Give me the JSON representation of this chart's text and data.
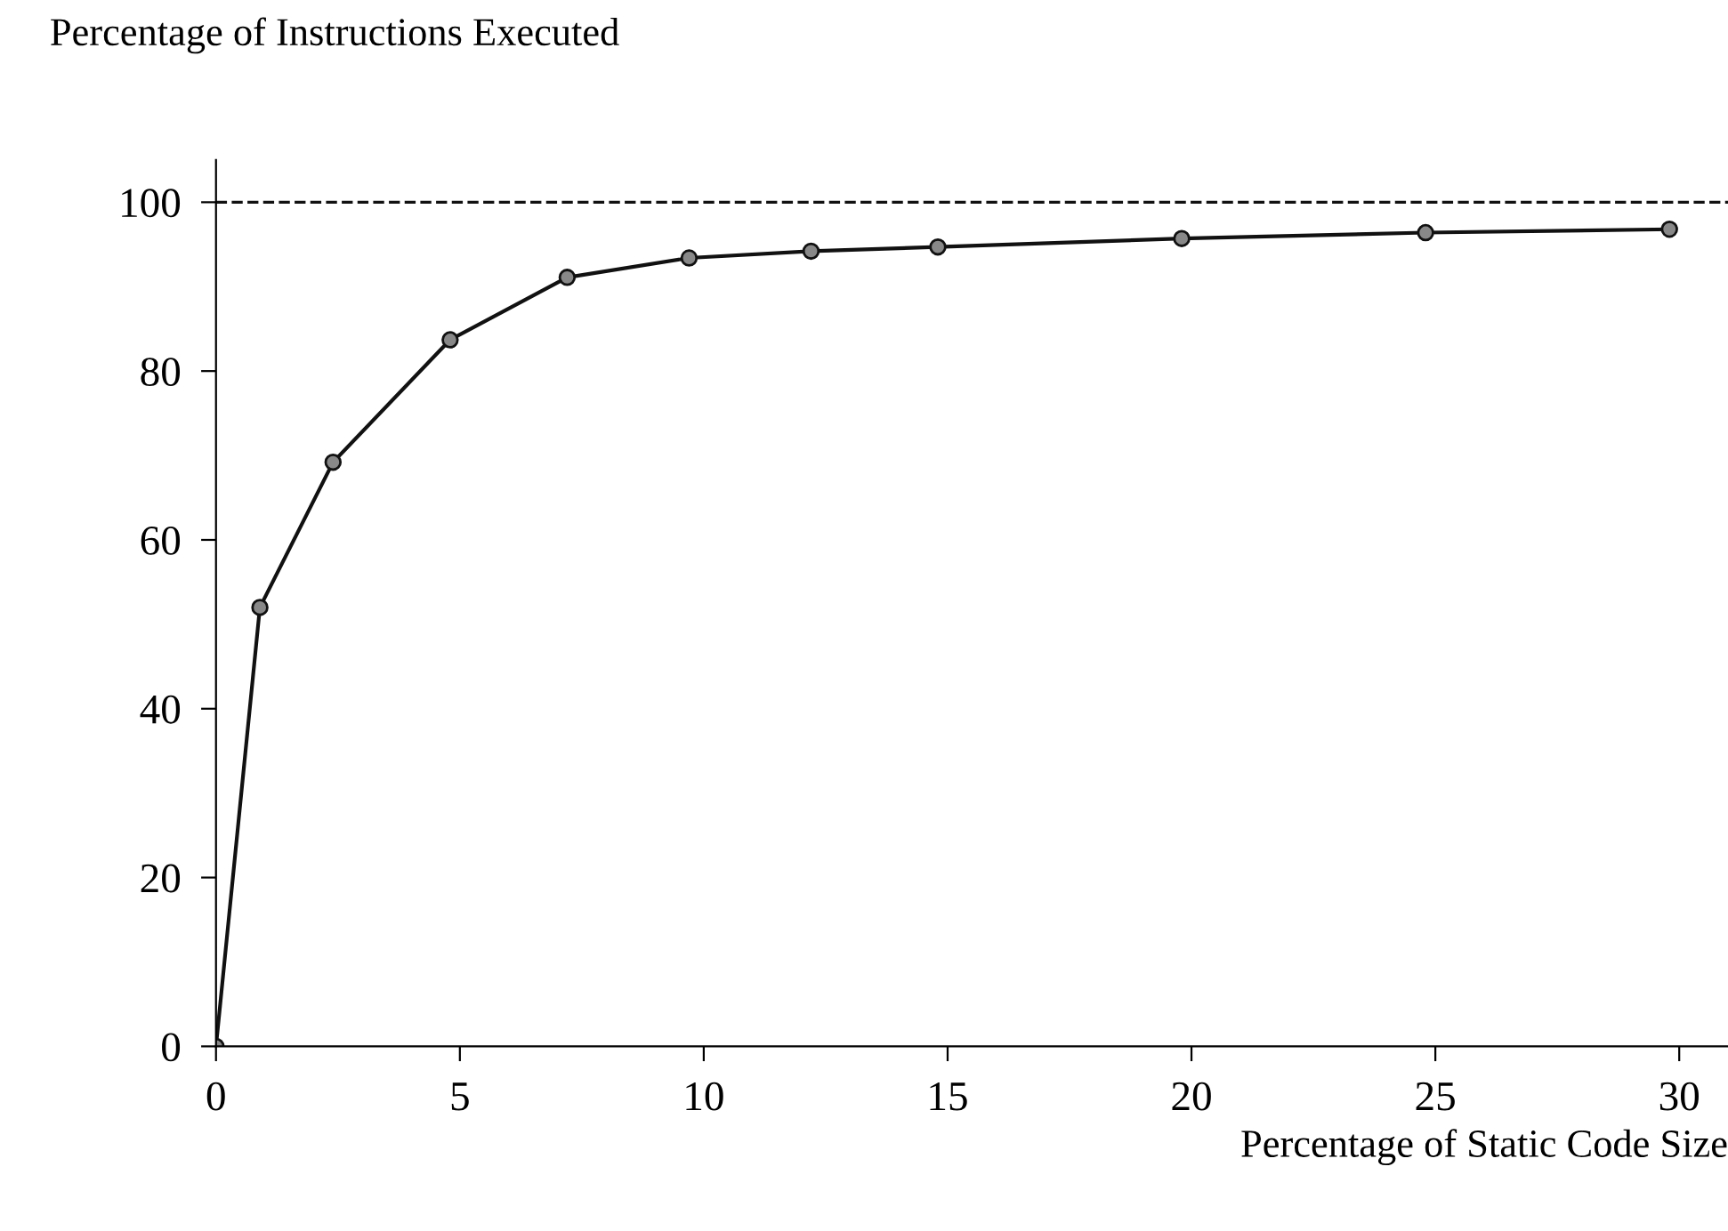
{
  "chart_data": {
    "type": "line",
    "xlabel": "Percentage of Static Code Size",
    "ylabel": "Percentage of Instructions Executed",
    "x": [
      0,
      0.9,
      2.4,
      4.8,
      7.2,
      9.7,
      12.2,
      14.8,
      19.8,
      24.8,
      29.8
    ],
    "series": [
      {
        "color": "#111111",
        "values": [
          0,
          52,
          69.2,
          83.7,
          91.1,
          93.4,
          94.2,
          94.7,
          95.7,
          96.4,
          96.8
        ]
      }
    ],
    "marker": "circle",
    "line_style": "solid",
    "xlim": [
      0,
      31
    ],
    "ylim": [
      0,
      105
    ],
    "xticks": [
      0,
      5,
      10,
      15,
      20,
      25,
      30
    ],
    "yticks": [
      0,
      20,
      40,
      60,
      80,
      100
    ],
    "ref_lines": [
      {
        "axis": "y",
        "value": 100,
        "line_style": "dashed",
        "color": "#111111"
      }
    ],
    "grid": false,
    "legend": false
  }
}
